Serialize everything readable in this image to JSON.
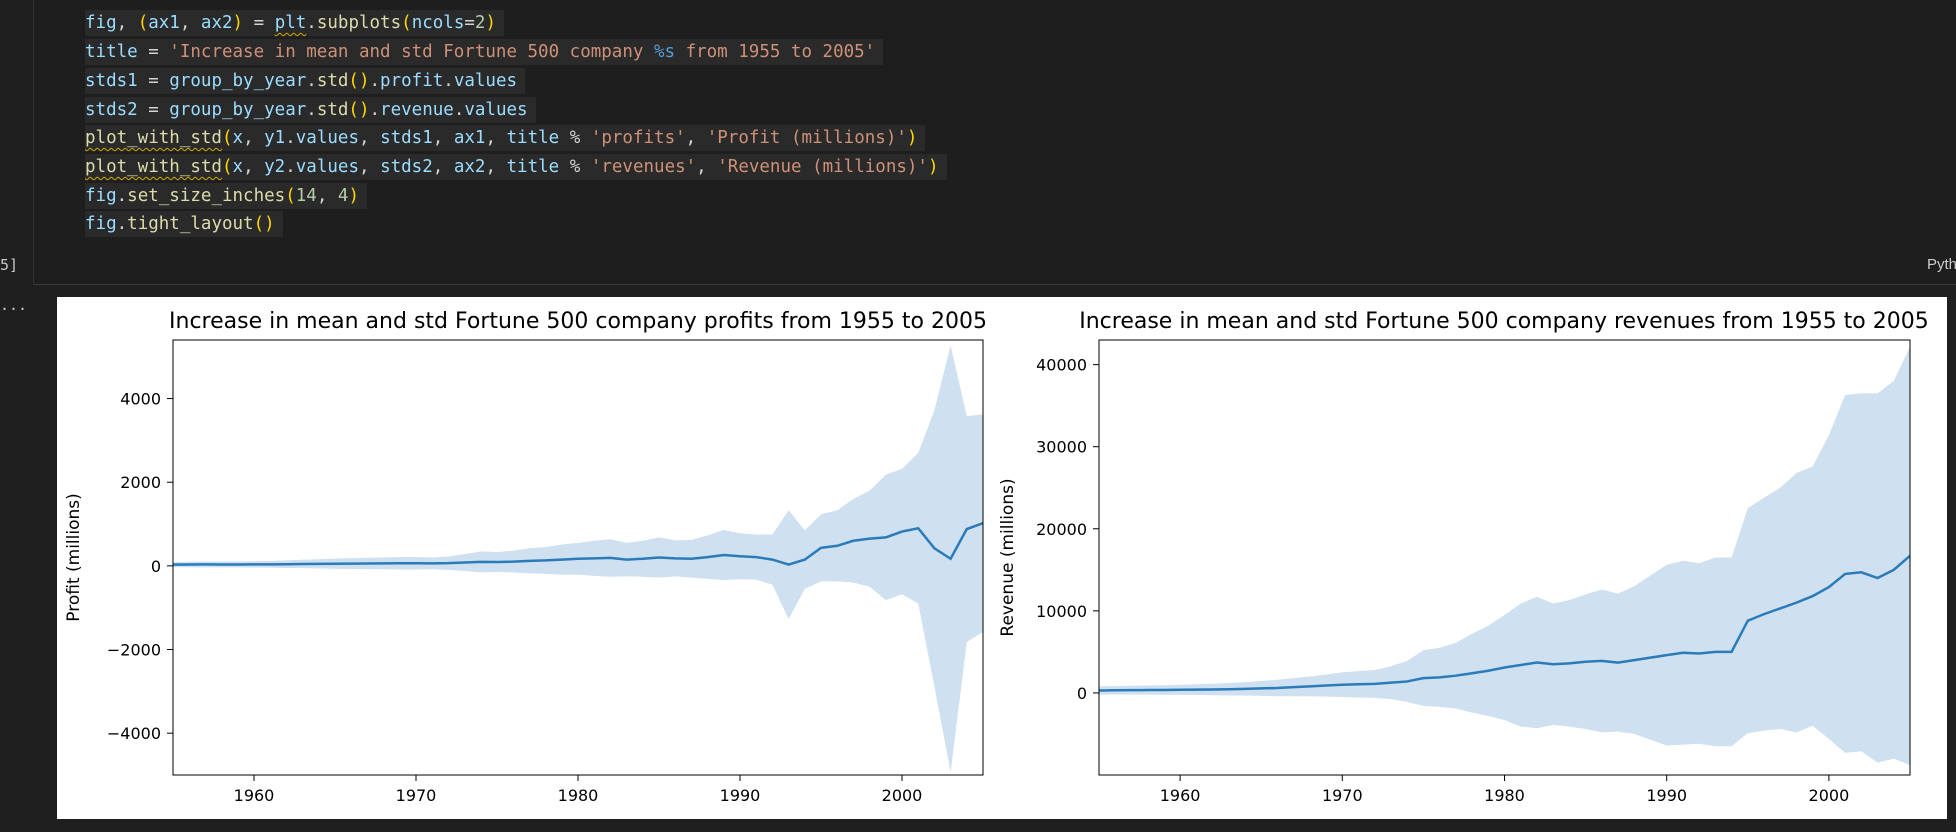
{
  "cell": {
    "execution_count": "5]",
    "language": "Pyth",
    "lines": [
      [
        [
          "fig",
          "t-var"
        ],
        [
          ", ",
          "t-plain"
        ],
        [
          "(",
          "t-par"
        ],
        [
          "ax1",
          "t-var"
        ],
        [
          ", ",
          "t-plain"
        ],
        [
          "ax2",
          "t-var"
        ],
        [
          ")",
          "t-par"
        ],
        [
          " = ",
          "t-plain"
        ],
        [
          "plt",
          "t-var squig"
        ],
        [
          ".",
          "t-plain"
        ],
        [
          "subplots",
          "t-fn"
        ],
        [
          "(",
          "t-par"
        ],
        [
          "ncols",
          "t-var"
        ],
        [
          "=",
          "t-plain"
        ],
        [
          "2",
          "t-num"
        ],
        [
          ")",
          "t-par"
        ]
      ],
      [
        [
          "title",
          "t-var"
        ],
        [
          " = ",
          "t-plain"
        ],
        [
          "'Increase in mean and std Fortune 500 company ",
          "t-str"
        ],
        [
          "%s",
          "t-kw"
        ],
        [
          " from 1955 to 2005'",
          "t-str"
        ]
      ],
      [
        [
          "stds1",
          "t-var"
        ],
        [
          " = ",
          "t-plain"
        ],
        [
          "group_by_year",
          "t-var"
        ],
        [
          ".",
          "t-plain"
        ],
        [
          "std",
          "t-fn"
        ],
        [
          "()",
          "t-par"
        ],
        [
          ".",
          "t-plain"
        ],
        [
          "profit",
          "t-var"
        ],
        [
          ".",
          "t-plain"
        ],
        [
          "values",
          "t-var"
        ]
      ],
      [
        [
          "stds2",
          "t-var"
        ],
        [
          " = ",
          "t-plain"
        ],
        [
          "group_by_year",
          "t-var"
        ],
        [
          ".",
          "t-plain"
        ],
        [
          "std",
          "t-fn"
        ],
        [
          "()",
          "t-par"
        ],
        [
          ".",
          "t-plain"
        ],
        [
          "revenue",
          "t-var"
        ],
        [
          ".",
          "t-plain"
        ],
        [
          "values",
          "t-var"
        ]
      ],
      [
        [
          "plot_with_std",
          "t-fn squig"
        ],
        [
          "(",
          "t-par"
        ],
        [
          "x",
          "t-var"
        ],
        [
          ", ",
          "t-plain"
        ],
        [
          "y1",
          "t-var"
        ],
        [
          ".",
          "t-plain"
        ],
        [
          "values",
          "t-var"
        ],
        [
          ", ",
          "t-plain"
        ],
        [
          "stds1",
          "t-var"
        ],
        [
          ", ",
          "t-plain"
        ],
        [
          "ax1",
          "t-var"
        ],
        [
          ", ",
          "t-plain"
        ],
        [
          "title",
          "t-var"
        ],
        [
          " % ",
          "t-plain"
        ],
        [
          "'profits'",
          "t-str"
        ],
        [
          ", ",
          "t-plain"
        ],
        [
          "'Profit (millions)'",
          "t-str"
        ],
        [
          ")",
          "t-par"
        ]
      ],
      [
        [
          "plot_with_std",
          "t-fn squig"
        ],
        [
          "(",
          "t-par"
        ],
        [
          "x",
          "t-var"
        ],
        [
          ", ",
          "t-plain"
        ],
        [
          "y2",
          "t-var"
        ],
        [
          ".",
          "t-plain"
        ],
        [
          "values",
          "t-var"
        ],
        [
          ", ",
          "t-plain"
        ],
        [
          "stds2",
          "t-var"
        ],
        [
          ", ",
          "t-plain"
        ],
        [
          "ax2",
          "t-var"
        ],
        [
          ", ",
          "t-plain"
        ],
        [
          "title",
          "t-var"
        ],
        [
          " % ",
          "t-plain"
        ],
        [
          "'revenues'",
          "t-str"
        ],
        [
          ", ",
          "t-plain"
        ],
        [
          "'Revenue (millions)'",
          "t-str"
        ],
        [
          ")",
          "t-par"
        ]
      ],
      [
        [
          "fig",
          "t-var"
        ],
        [
          ".",
          "t-plain"
        ],
        [
          "set_size_inches",
          "t-fn"
        ],
        [
          "(",
          "t-par"
        ],
        [
          "14",
          "t-num"
        ],
        [
          ", ",
          "t-plain"
        ],
        [
          "4",
          "t-num"
        ],
        [
          ")",
          "t-par"
        ]
      ],
      [
        [
          "fig",
          "t-var"
        ],
        [
          ".",
          "t-plain"
        ],
        [
          "tight_layout",
          "t-fn"
        ],
        [
          "()",
          "t-par"
        ]
      ]
    ]
  },
  "output_gutter": "...",
  "colors": {
    "line": "#2b7bba",
    "band": "#cfe0f0"
  },
  "chart_data": [
    {
      "type": "area",
      "title": "Increase in mean and std Fortune 500 company profits from 1955 to 2005",
      "xlabel": "",
      "ylabel": "Profit (millions)",
      "xlim": [
        1955,
        2005
      ],
      "ylim": [
        -5000,
        5400
      ],
      "xticks": [
        1960,
        1970,
        1980,
        1990,
        2000
      ],
      "yticks": [
        -4000,
        -2000,
        0,
        2000,
        4000
      ],
      "ytick_labels": [
        "−4000",
        "−2000",
        "0",
        "2000",
        "4000"
      ],
      "x": [
        1955,
        1956,
        1957,
        1958,
        1959,
        1960,
        1961,
        1962,
        1963,
        1964,
        1965,
        1966,
        1967,
        1968,
        1969,
        1970,
        1971,
        1972,
        1973,
        1974,
        1975,
        1976,
        1977,
        1978,
        1979,
        1980,
        1981,
        1982,
        1983,
        1984,
        1985,
        1986,
        1987,
        1988,
        1989,
        1990,
        1991,
        1992,
        1993,
        1994,
        1995,
        1996,
        1997,
        1998,
        1999,
        2000,
        2001,
        2002,
        2003,
        2004,
        2005
      ],
      "series": [
        {
          "values": [
            30,
            32,
            35,
            34,
            33,
            36,
            37,
            40,
            45,
            48,
            52,
            55,
            58,
            60,
            62,
            62,
            60,
            65,
            80,
            95,
            92,
            100,
            120,
            130,
            150,
            170,
            180,
            190,
            150,
            170,
            200,
            180,
            170,
            210,
            260,
            230,
            210,
            150,
            30,
            150,
            430,
            480,
            600,
            650,
            680,
            820,
            900,
            420,
            170,
            880,
            1020
          ],
          "std": [
            60,
            65,
            70,
            70,
            70,
            75,
            80,
            90,
            100,
            110,
            120,
            130,
            135,
            140,
            150,
            150,
            140,
            160,
            200,
            250,
            240,
            260,
            300,
            320,
            360,
            380,
            420,
            450,
            400,
            430,
            480,
            430,
            450,
            520,
            600,
            550,
            540,
            600,
            1300,
            700,
            800,
            850,
            1000,
            1150,
            1500,
            1500,
            1800,
            3300,
            5100,
            2700,
            2600
          ]
        }
      ]
    },
    {
      "type": "area",
      "title": "Increase in mean and std Fortune 500 company revenues from 1955 to 2005",
      "xlabel": "",
      "ylabel": "Revenue (millions)",
      "xlim": [
        1955,
        2005
      ],
      "ylim": [
        -10000,
        43000
      ],
      "xticks": [
        1960,
        1970,
        1980,
        1990,
        2000
      ],
      "yticks": [
        0,
        10000,
        20000,
        30000,
        40000
      ],
      "ytick_labels": [
        "0",
        "10000",
        "20000",
        "30000",
        "40000"
      ],
      "x": [
        1955,
        1956,
        1957,
        1958,
        1959,
        1960,
        1961,
        1962,
        1963,
        1964,
        1965,
        1966,
        1967,
        1968,
        1969,
        1970,
        1971,
        1972,
        1973,
        1974,
        1975,
        1976,
        1977,
        1978,
        1979,
        1980,
        1981,
        1982,
        1983,
        1984,
        1985,
        1986,
        1987,
        1988,
        1989,
        1990,
        1991,
        1992,
        1993,
        1994,
        1995,
        1996,
        1997,
        1998,
        1999,
        2000,
        2001,
        2002,
        2003,
        2004,
        2005
      ],
      "series": [
        {
          "values": [
            300,
            320,
            340,
            350,
            360,
            380,
            400,
            420,
            450,
            500,
            550,
            600,
            700,
            800,
            900,
            1000,
            1050,
            1100,
            1250,
            1400,
            1800,
            1900,
            2100,
            2400,
            2700,
            3100,
            3400,
            3700,
            3500,
            3600,
            3800,
            3900,
            3700,
            4000,
            4300,
            4600,
            4900,
            4800,
            5000,
            5000,
            8800,
            9600,
            10300,
            11000,
            11800,
            12900,
            14500,
            14700,
            14000,
            15000,
            16700
          ],
          "std": [
            500,
            520,
            540,
            560,
            580,
            600,
            650,
            700,
            760,
            820,
            900,
            1000,
            1100,
            1200,
            1350,
            1500,
            1600,
            1700,
            2000,
            2500,
            3400,
            3600,
            4000,
            4800,
            5500,
            6400,
            7500,
            8000,
            7400,
            7700,
            8200,
            8700,
            8400,
            9000,
            10000,
            11000,
            11200,
            11000,
            11500,
            11500,
            13700,
            14200,
            14700,
            15800,
            15800,
            18500,
            21800,
            21800,
            22500,
            23000,
            25500
          ]
        }
      ]
    }
  ]
}
